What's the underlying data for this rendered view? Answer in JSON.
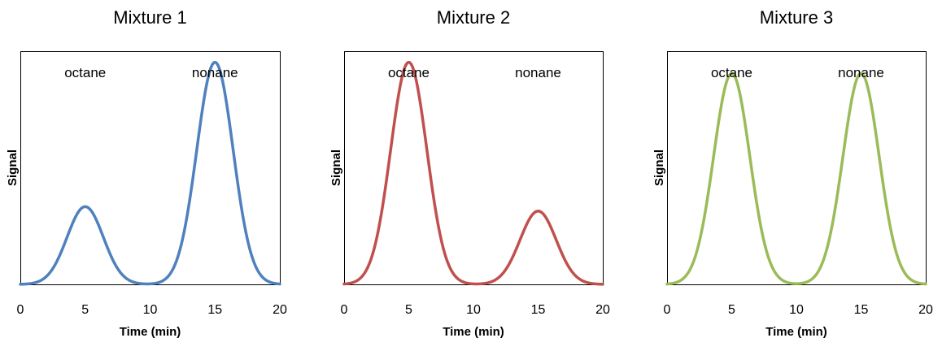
{
  "chart_data": [
    {
      "type": "line",
      "title": "Mixture 1",
      "xlabel": "Time (min)",
      "ylabel": "Signal",
      "xlim": [
        0,
        20
      ],
      "ylim": [
        0,
        1.05
      ],
      "xticks": [
        0,
        5,
        10,
        15,
        20
      ],
      "y_ticks_shown": false,
      "grid": false,
      "legend": "none",
      "color": "#4f81bd",
      "peaks": [
        {
          "name": "octane",
          "time": 5,
          "height": 0.35,
          "width": 1.4
        },
        {
          "name": "nonane",
          "time": 15,
          "height": 1.0,
          "width": 1.4
        }
      ]
    },
    {
      "type": "line",
      "title": "Mixture 2",
      "xlabel": "Time (min)",
      "ylabel": "Signal",
      "xlim": [
        0,
        20
      ],
      "ylim": [
        0,
        1.05
      ],
      "xticks": [
        0,
        5,
        10,
        15,
        20
      ],
      "y_ticks_shown": false,
      "grid": false,
      "legend": "none",
      "color": "#c0504d",
      "peaks": [
        {
          "name": "octane",
          "time": 5,
          "height": 1.0,
          "width": 1.4
        },
        {
          "name": "nonane",
          "time": 15,
          "height": 0.33,
          "width": 1.4
        }
      ]
    },
    {
      "type": "line",
      "title": "Mixture 3",
      "xlabel": "Time (min)",
      "ylabel": "Signal",
      "xlim": [
        0,
        20
      ],
      "ylim": [
        0,
        1.05
      ],
      "xticks": [
        0,
        5,
        10,
        15,
        20
      ],
      "y_ticks_shown": false,
      "grid": false,
      "legend": "none",
      "color": "#9bbb59",
      "peaks": [
        {
          "name": "octane",
          "time": 5,
          "height": 0.95,
          "width": 1.4
        },
        {
          "name": "nonane",
          "time": 15,
          "height": 0.95,
          "width": 1.4
        }
      ]
    }
  ]
}
